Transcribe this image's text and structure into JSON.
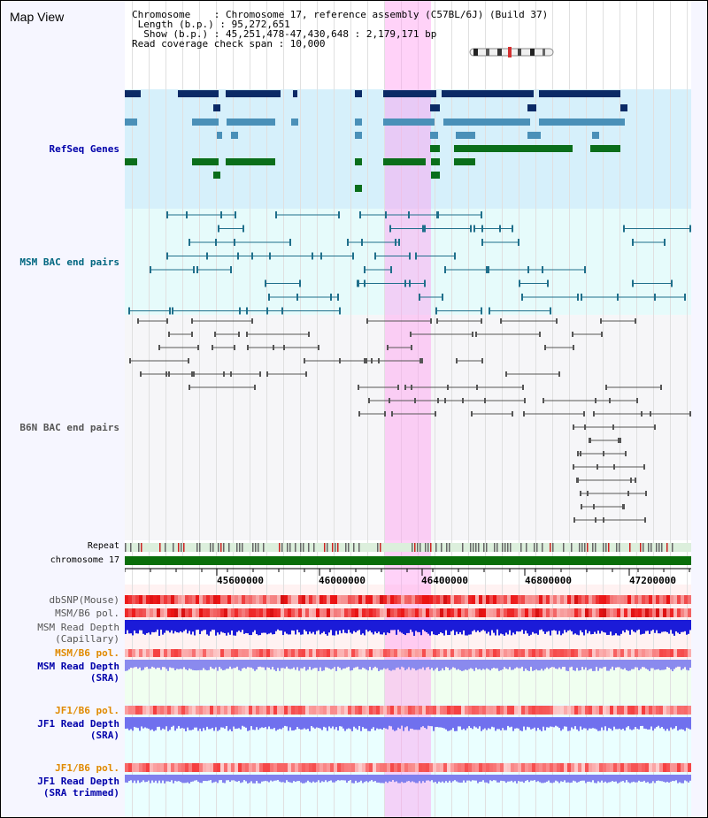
{
  "title": "Map View",
  "info": {
    "chromosome": "Chromosome    : Chromosome 17, reference assembly (C57BL/6J) (Build 37)",
    "length": " Length (b.p.) : 95,272,651",
    "show": "  Show (b.p.) : 45,251,478-47,430,648 : 2,179,171 bp",
    "span": "Read coverage check span : 10,000"
  },
  "tracks": {
    "refseq": "RefSeq Genes",
    "msm_bac": "MSM BAC end pairs",
    "b6n_bac": "B6N BAC end pairs",
    "repeat": "Repeat",
    "chromosome": "chromosome 17",
    "dbsnp": "dbSNP(Mouse)",
    "msm_b6_pol_1": "MSM/B6 pol.",
    "msm_depth_cap_1": "MSM Read Depth",
    "msm_depth_cap_2": "(Capillary)",
    "msm_b6_pol_2": "MSM/B6 pol.",
    "msm_depth_sra_1": "MSM Read Depth",
    "msm_depth_sra_2": "(SRA)",
    "jf1_pol_1": "JF1/B6 pol.",
    "jf1_depth_1": "JF1 Read Depth",
    "jf1_depth_2": "(SRA)",
    "jf1_pol_2": "JF1/B6 pol.",
    "jf1_depth_trim_1": "JF1 Read Depth",
    "jf1_depth_trim_2": "(SRA trimmed)"
  },
  "axis": {
    "ticks": [
      "45600000",
      "46000000",
      "46400000",
      "46800000",
      "47200000"
    ]
  },
  "colors": {
    "refseq_bg": "#d6f0fb",
    "msm_bac_bg": "#e6fbfb",
    "b6n_bac_bg": "#f6f6f8",
    "refseq_dark": "#0b2a66",
    "refseq_mid": "#4a90b8",
    "refseq_green": "#0a6e1a",
    "msm_bac": "#1f6f8b",
    "b6n_bac": "#555555",
    "chrom": "#0a6e0a",
    "highlight": "#ff9cf0",
    "label_blue": "#0000aa",
    "label_teal": "#006680",
    "label_orange": "#e08a00",
    "label_gray": "#555555"
  }
}
